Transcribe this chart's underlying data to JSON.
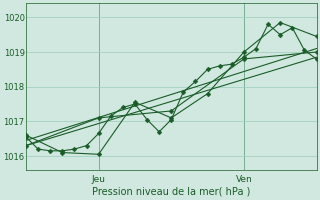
{
  "bg_color": "#d0e8e0",
  "grid_color": "#99ccbb",
  "line_color": "#1a5c28",
  "marker_color": "#1a5c28",
  "xlabel": "Pression niveau de la mer( hPa )",
  "xlabel_color": "#1a5c28",
  "tick_color": "#1a5c28",
  "yticks": [
    1016,
    1017,
    1018,
    1019,
    1020
  ],
  "ylim": [
    1015.6,
    1020.4
  ],
  "xlim": [
    0,
    48
  ],
  "jeu_x": 12,
  "ven_x": 36,
  "series": [
    {
      "x": [
        0,
        2,
        4,
        6,
        8,
        10,
        12,
        14,
        16,
        18,
        20,
        22,
        24,
        26,
        28,
        30,
        32,
        34,
        36,
        38,
        40,
        42,
        44,
        46,
        48
      ],
      "y": [
        1016.55,
        1016.2,
        1016.15,
        1016.15,
        1016.2,
        1016.3,
        1016.65,
        1017.15,
        1017.4,
        1017.5,
        1017.05,
        1016.7,
        1017.05,
        1017.85,
        1018.15,
        1018.5,
        1018.6,
        1018.65,
        1018.85,
        1019.1,
        1019.8,
        1019.5,
        1019.7,
        1019.05,
        1018.8
      ],
      "marker": "D",
      "markersize": 2.5,
      "lw": 0.8
    },
    {
      "x": [
        0,
        6,
        12,
        18,
        24,
        30,
        36,
        42,
        48
      ],
      "y": [
        1016.6,
        1016.1,
        1016.05,
        1017.55,
        1017.1,
        1017.8,
        1019.0,
        1019.85,
        1019.45
      ],
      "marker": "D",
      "markersize": 2.5,
      "lw": 0.8
    },
    {
      "x": [
        0,
        12,
        24,
        36,
        48
      ],
      "y": [
        1016.3,
        1017.1,
        1017.3,
        1018.8,
        1019.0
      ],
      "marker": "D",
      "markersize": 2.5,
      "lw": 0.8
    },
    {
      "x": [
        0,
        48
      ],
      "y": [
        1016.3,
        1018.85
      ],
      "marker": null,
      "markersize": null,
      "lw": 0.8
    },
    {
      "x": [
        0,
        48
      ],
      "y": [
        1016.45,
        1019.1
      ],
      "marker": null,
      "markersize": null,
      "lw": 0.8
    }
  ],
  "figsize": [
    3.2,
    2.0
  ],
  "dpi": 100
}
